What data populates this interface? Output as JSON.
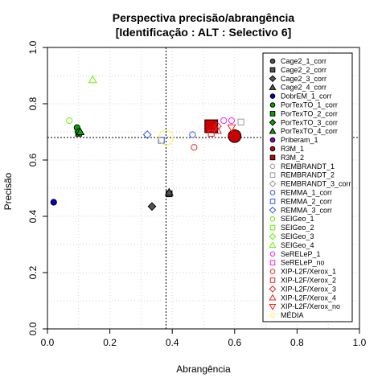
{
  "chart_data": {
    "type": "scatter",
    "title": "Perspectiva precisão/abrangência",
    "subtitle": "[Identificação : ALT : Selectivo 6]",
    "xlabel": "Abrangência",
    "ylabel": "Precisão",
    "xlim": [
      0,
      1
    ],
    "ylim": [
      0,
      1
    ],
    "x_ticks": [
      "0.0",
      "0.2",
      "0.4",
      "0.6",
      "0.8",
      "1.0"
    ],
    "y_ticks": [
      "0.0",
      "0.2",
      "0.4",
      "0.6",
      "0.8",
      "1.0"
    ],
    "grid": true,
    "legend_position": "right",
    "reference_lines": {
      "vertical_x": 0.38,
      "horizontal_y": 0.68
    },
    "series": [
      {
        "name": "Cage2_1_corr",
        "color": "#555555",
        "shape": "circle",
        "filled": true,
        "size": 1,
        "points": [
          [
            0.39,
            0.48
          ]
        ]
      },
      {
        "name": "Cage2_2_corr",
        "color": "#555555",
        "shape": "square",
        "filled": true,
        "size": 1,
        "points": [
          [
            0.39,
            0.48
          ]
        ]
      },
      {
        "name": "Cage2_3_corr",
        "color": "#555555",
        "shape": "diamond",
        "filled": true,
        "size": 1,
        "points": [
          [
            0.335,
            0.435
          ]
        ]
      },
      {
        "name": "Cage2_4_corr",
        "color": "#555555",
        "shape": "triangle",
        "filled": true,
        "size": 1,
        "points": [
          [
            0.39,
            0.485
          ]
        ]
      },
      {
        "name": "DobrEM_1_corr",
        "color": "#0000cc",
        "shape": "circle",
        "filled": true,
        "size": 1,
        "points": [
          [
            0.02,
            0.45
          ]
        ]
      },
      {
        "name": "PorTexTO_1_corr",
        "color": "#00aa00",
        "shape": "circle",
        "filled": true,
        "size": 1,
        "points": [
          [
            0.095,
            0.715
          ]
        ]
      },
      {
        "name": "PorTexTO_2_corr",
        "color": "#00aa00",
        "shape": "square",
        "filled": true,
        "size": 1,
        "points": [
          [
            0.1,
            0.695
          ]
        ]
      },
      {
        "name": "PorTexTO_3_corr",
        "color": "#00aa00",
        "shape": "diamond",
        "filled": true,
        "size": 1,
        "points": [
          [
            0.1,
            0.7
          ]
        ]
      },
      {
        "name": "PorTexTO_4_corr",
        "color": "#00aa00",
        "shape": "triangle",
        "filled": true,
        "size": 1,
        "points": [
          [
            0.105,
            0.7
          ]
        ]
      },
      {
        "name": "Priberam_1",
        "color": "#8800cc",
        "shape": "circle",
        "filled": true,
        "size": 1,
        "points": []
      },
      {
        "name": "R3M_1",
        "color": "#cc0000",
        "shape": "circle",
        "filled": true,
        "size": 2.2,
        "points": [
          [
            0.6,
            0.685
          ]
        ]
      },
      {
        "name": "R3M_2",
        "color": "#cc0000",
        "shape": "square",
        "filled": true,
        "size": 2.2,
        "points": [
          [
            0.525,
            0.72
          ]
        ]
      },
      {
        "name": "REMBRANDT_1",
        "color": "#999999",
        "shape": "circle",
        "filled": false,
        "size": 1,
        "points": []
      },
      {
        "name": "REMBRANDT_2",
        "color": "#999999",
        "shape": "square",
        "filled": false,
        "size": 1,
        "points": [
          [
            0.62,
            0.735
          ]
        ]
      },
      {
        "name": "REMBRANDT_3_corr",
        "color": "#999999",
        "shape": "diamond",
        "filled": false,
        "size": 1,
        "points": []
      },
      {
        "name": "REMMA_1_corr",
        "color": "#3355ee",
        "shape": "circle",
        "filled": false,
        "size": 1,
        "points": [
          [
            0.465,
            0.69
          ]
        ]
      },
      {
        "name": "REMMA_2_corr",
        "color": "#3355ee",
        "shape": "square",
        "filled": false,
        "size": 1,
        "points": [
          [
            0.365,
            0.67
          ]
        ]
      },
      {
        "name": "REMMA_3_corr",
        "color": "#3355ee",
        "shape": "diamond",
        "filled": false,
        "size": 1,
        "points": [
          [
            0.32,
            0.69
          ]
        ]
      },
      {
        "name": "SEIGeo_1",
        "color": "#66ee00",
        "shape": "circle",
        "filled": false,
        "size": 1,
        "points": [
          [
            0.07,
            0.74
          ]
        ]
      },
      {
        "name": "SEIGeo_2",
        "color": "#66ee00",
        "shape": "square",
        "filled": false,
        "size": 1,
        "points": []
      },
      {
        "name": "SEIGeo_3",
        "color": "#66ee00",
        "shape": "diamond",
        "filled": false,
        "size": 1,
        "points": []
      },
      {
        "name": "SEIGeo_4",
        "color": "#66ee00",
        "shape": "triangle",
        "filled": false,
        "size": 1,
        "points": [
          [
            0.145,
            0.885
          ]
        ]
      },
      {
        "name": "SeRELeP_1",
        "color": "#ee22ee",
        "shape": "circle",
        "filled": false,
        "size": 1,
        "points": [
          [
            0.565,
            0.74
          ],
          [
            0.59,
            0.74
          ]
        ]
      },
      {
        "name": "SeRELeP_no",
        "color": "#ee22ee",
        "shape": "square",
        "filled": false,
        "size": 1,
        "points": []
      },
      {
        "name": "XIP-L2F/Xerox_1",
        "color": "#ee2222",
        "shape": "circle",
        "filled": false,
        "size": 1,
        "points": [
          [
            0.47,
            0.645
          ]
        ]
      },
      {
        "name": "XIP-L2F/Xerox_2",
        "color": "#ee2222",
        "shape": "square",
        "filled": false,
        "size": 1,
        "points": [
          [
            0.525,
            0.695
          ]
        ]
      },
      {
        "name": "XIP-L2F/Xerox_3",
        "color": "#ee2222",
        "shape": "diamond",
        "filled": false,
        "size": 1,
        "points": [
          [
            0.545,
            0.72
          ]
        ]
      },
      {
        "name": "XIP-L2F/Xerox_4",
        "color": "#ee2222",
        "shape": "triangle",
        "filled": false,
        "size": 1,
        "points": [
          [
            0.545,
            0.705
          ]
        ]
      },
      {
        "name": "XIP-L2F/Xerox_no",
        "color": "#ee2222",
        "shape": "triangle-down",
        "filled": false,
        "size": 1,
        "points": [
          [
            0.59,
            0.715
          ]
        ]
      },
      {
        "name": "MÉDIA",
        "color": "#ffee55",
        "shape": "circle",
        "filled": false,
        "size": 2.5,
        "points": [
          [
            0.38,
            0.68
          ]
        ]
      }
    ]
  }
}
